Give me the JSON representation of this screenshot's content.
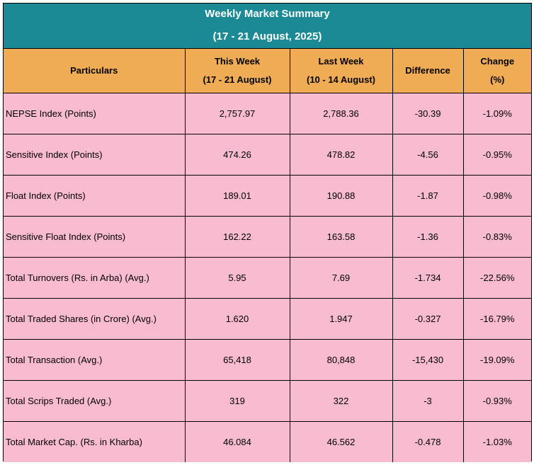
{
  "title": "Weekly Market Summary",
  "subtitle": "(17 - 21 August, 2025)",
  "headers": {
    "particulars": "Particulars",
    "this_week": "This Week",
    "this_week_range": "(17 - 21 August)",
    "last_week": "Last Week",
    "last_week_range": "(10 - 14 August)",
    "difference": "Difference",
    "change": "Change",
    "change_unit": "(%)"
  },
  "rows": [
    {
      "label": "NEPSE Index (Points)",
      "this_week": "2,757.97",
      "last_week": "2,788.36",
      "difference": "-30.39",
      "change": "-1.09%"
    },
    {
      "label": "Sensitive Index (Points)",
      "this_week": "474.26",
      "last_week": "478.82",
      "difference": "-4.56",
      "change": "-0.95%"
    },
    {
      "label": "Float Index (Points)",
      "this_week": "189.01",
      "last_week": "190.88",
      "difference": "-1.87",
      "change": "-0.98%"
    },
    {
      "label": "Sensitive Float Index (Points)",
      "this_week": "162.22",
      "last_week": "163.58",
      "difference": "-1.36",
      "change": "-0.83%"
    },
    {
      "label": "Total Turnovers (Rs. in Arba) (Avg.)",
      "this_week": "5.95",
      "last_week": "7.69",
      "difference": "-1.734",
      "change": "-22.56%"
    },
    {
      "label": "Total Traded Shares (in Crore) (Avg.)",
      "this_week": "1.620",
      "last_week": "1.947",
      "difference": "-0.327",
      "change": "-16.79%"
    },
    {
      "label": "Total Transaction (Avg.)",
      "this_week": "65,418",
      "last_week": "80,848",
      "difference": "-15,430",
      "change": "-19.09%"
    },
    {
      "label": "Total Scrips Traded (Avg.)",
      "this_week": "319",
      "last_week": "322",
      "difference": "-3",
      "change": "-0.93%"
    },
    {
      "label": "Total Market Cap. (Rs. in Kharba)",
      "this_week": "46.084",
      "last_week": "46.562",
      "difference": "-0.478",
      "change": "-1.03%"
    }
  ],
  "colors": {
    "title_bg": "#1b8a94",
    "header_bg": "#f0ab55",
    "row_bg": "#f8bbd0"
  }
}
